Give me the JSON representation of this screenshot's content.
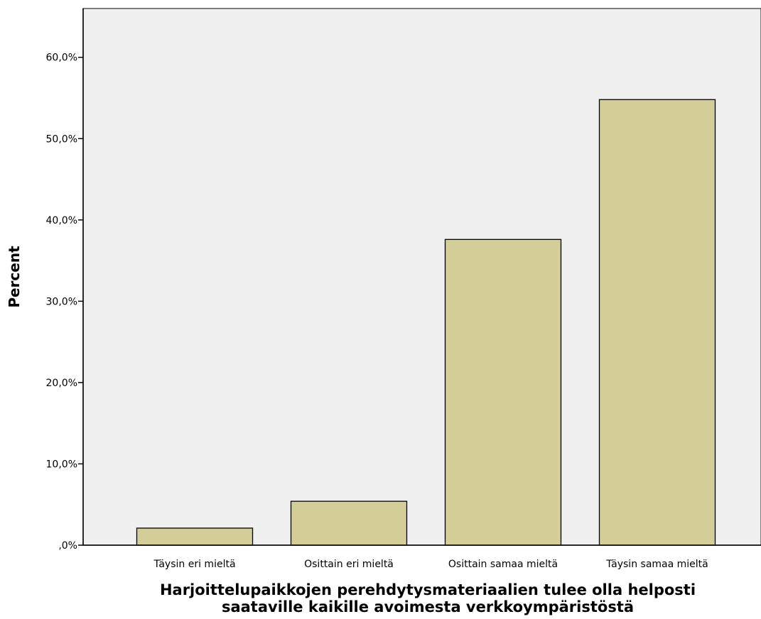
{
  "chart_data": {
    "type": "bar",
    "categories": [
      "Täysin eri mieltä",
      "Osittain eri mieltä",
      "Osittain samaa mieltä",
      "Täysin samaa mieltä"
    ],
    "values": [
      2.1,
      5.4,
      37.6,
      54.8
    ],
    "ylabel": "Percent",
    "xlabel_lines": [
      "Harjoittelupaikkojen perehdytysmateriaalien tulee olla helposti",
      "saataville kaikille avoimesta verkkoympäristöstä"
    ],
    "ylim": [
      0,
      66
    ],
    "yticks": [
      0,
      10,
      20,
      30,
      40,
      50,
      60
    ],
    "ytick_labels": [
      ",0%",
      "10,0%",
      "20,0%",
      "30,0%",
      "40,0%",
      "50,0%",
      "60,0%"
    ],
    "grid": false,
    "colors": {
      "plot_background": "#f0f0f0",
      "bar_fill": "#d3ce97",
      "bar_stroke": "#000000"
    }
  }
}
